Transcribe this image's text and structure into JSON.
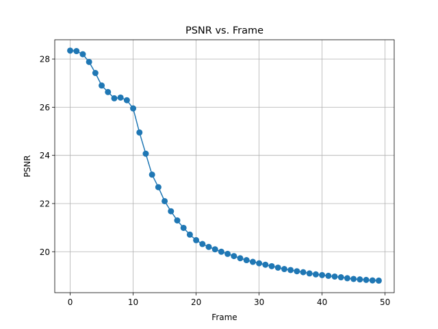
{
  "chart_data": {
    "type": "line",
    "title": "PSNR vs. Frame",
    "xlabel": "Frame",
    "ylabel": "PSNR",
    "xlim": [
      -2.45,
      51.45
    ],
    "ylim": [
      18.3,
      28.8
    ],
    "xticks": [
      0,
      10,
      20,
      30,
      40,
      50
    ],
    "yticks": [
      20,
      22,
      24,
      26,
      28
    ],
    "grid": true,
    "marker": "circle",
    "series": [
      {
        "color": "#1f77b4",
        "x": [
          0,
          1,
          2,
          3,
          4,
          5,
          6,
          7,
          8,
          9,
          10,
          11,
          12,
          13,
          14,
          15,
          16,
          17,
          18,
          19,
          20,
          21,
          22,
          23,
          24,
          25,
          26,
          27,
          28,
          29,
          30,
          31,
          32,
          33,
          34,
          35,
          36,
          37,
          38,
          39,
          40,
          41,
          42,
          43,
          44,
          45,
          46,
          47,
          48,
          49
        ],
        "y": [
          28.35,
          28.33,
          28.2,
          27.88,
          27.42,
          26.9,
          26.63,
          26.37,
          26.4,
          26.29,
          25.95,
          24.95,
          24.07,
          23.2,
          22.68,
          22.1,
          21.68,
          21.3,
          20.99,
          20.71,
          20.48,
          20.32,
          20.2,
          20.1,
          20.0,
          19.91,
          19.82,
          19.73,
          19.65,
          19.58,
          19.52,
          19.46,
          19.4,
          19.34,
          19.28,
          19.24,
          19.19,
          19.15,
          19.1,
          19.06,
          19.03,
          19.0,
          18.97,
          18.94,
          18.9,
          18.87,
          18.85,
          18.83,
          18.81,
          18.8
        ]
      }
    ]
  }
}
